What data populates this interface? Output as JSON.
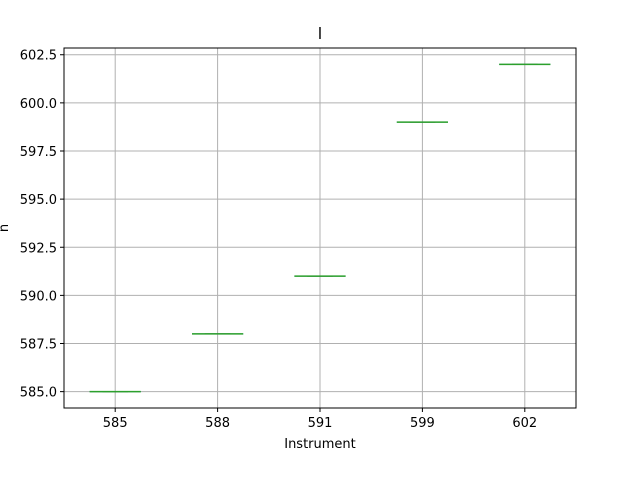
{
  "chart_data": {
    "type": "box",
    "title": "l",
    "xlabel": "Instrument",
    "ylabel": "n",
    "categories": [
      "585",
      "588",
      "591",
      "599",
      "602"
    ],
    "values": [
      585.0,
      588.0,
      591.0,
      599.0,
      602.0
    ],
    "ylim": [
      584.15,
      602.85
    ],
    "yticks": [
      585.0,
      587.5,
      590.0,
      592.5,
      595.0,
      597.5,
      600.0,
      602.5
    ],
    "ytick_labels": [
      "585.0",
      "587.5",
      "590.0",
      "592.5",
      "595.0",
      "597.5",
      "600.0",
      "602.5"
    ],
    "grid": true,
    "median_color": "#2ca02c",
    "box_color": "#1f77b4"
  }
}
